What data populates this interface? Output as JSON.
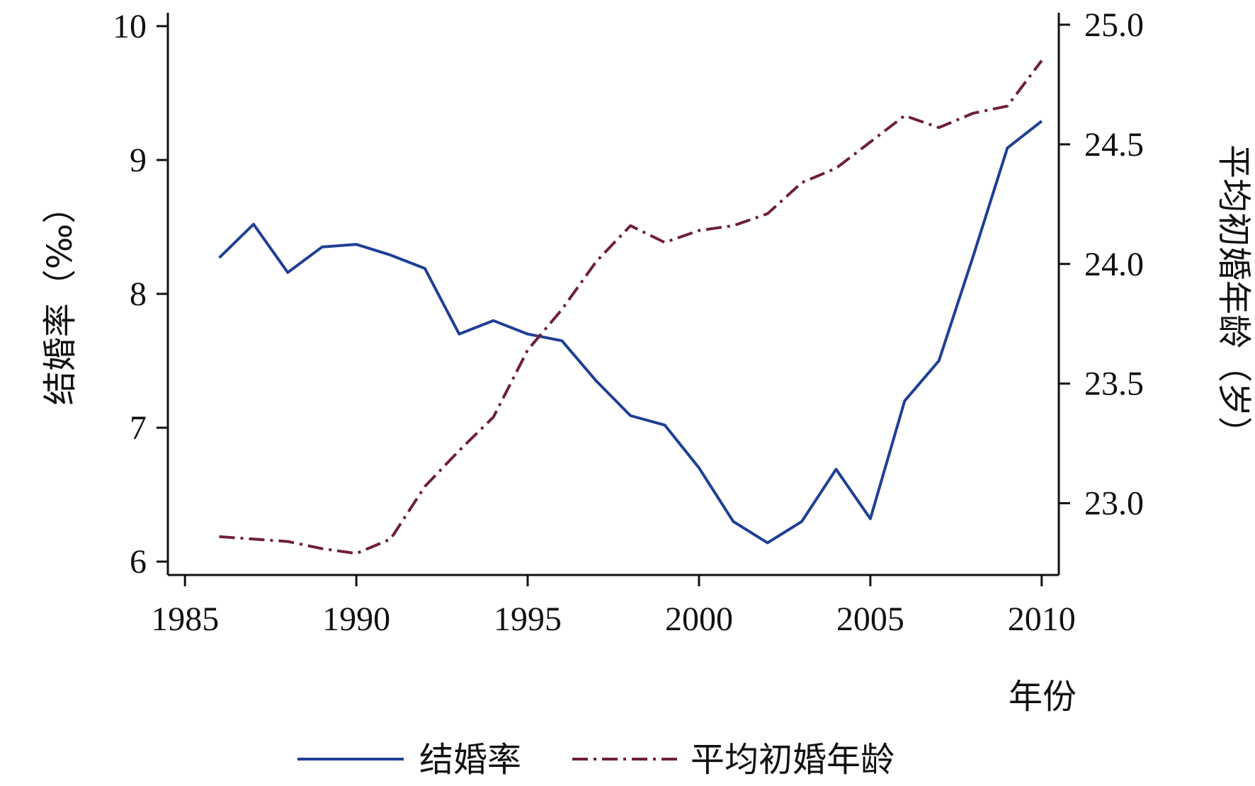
{
  "chart_data": {
    "type": "line",
    "title": "",
    "xlabel": "年份",
    "ylabel_left": "结婚率（‰）",
    "ylabel_right": "平均初婚年龄（岁）",
    "xlim": [
      1984.5,
      2010.5
    ],
    "xticks": [
      1985,
      1990,
      1995,
      2000,
      2005,
      2010
    ],
    "ylim_left": [
      5.9,
      10.1
    ],
    "yticks_left": [
      6,
      7,
      8,
      9,
      10
    ],
    "ylim_right": [
      22.7,
      25.05
    ],
    "yticks_right": [
      23.0,
      23.5,
      24.0,
      24.5,
      25.0
    ],
    "grid": false,
    "legend_position": "bottom",
    "series": [
      {
        "name": "结婚率",
        "axis": "left",
        "color": "#1f3f95",
        "dash": "solid",
        "x": [
          1986,
          1987,
          1988,
          1989,
          1990,
          1991,
          1992,
          1993,
          1994,
          1995,
          1996,
          1997,
          1998,
          1999,
          2000,
          2001,
          2002,
          2003,
          2004,
          2005,
          2006,
          2007,
          2008,
          2009,
          2010
        ],
        "values": [
          8.27,
          8.52,
          8.16,
          8.35,
          8.37,
          8.29,
          8.19,
          7.7,
          7.8,
          7.7,
          7.65,
          7.35,
          7.09,
          7.02,
          6.7,
          6.3,
          6.14,
          6.3,
          6.69,
          6.32,
          7.2,
          7.5,
          8.28,
          9.09,
          9.29
        ]
      },
      {
        "name": "平均初婚年龄",
        "axis": "right",
        "color": "#6e1f3a",
        "dash": "dashdot",
        "x": [
          1986,
          1987,
          1988,
          1989,
          1990,
          1991,
          1992,
          1993,
          1994,
          1995,
          1996,
          1997,
          1998,
          1999,
          2000,
          2001,
          2002,
          2003,
          2004,
          2005,
          2006,
          2007,
          2008,
          2009,
          2010
        ],
        "values": [
          22.86,
          22.85,
          22.84,
          22.81,
          22.79,
          22.85,
          23.07,
          23.22,
          23.36,
          23.64,
          23.81,
          24.01,
          24.16,
          24.09,
          24.14,
          24.16,
          24.21,
          24.34,
          24.4,
          24.51,
          24.62,
          24.57,
          24.63,
          24.66,
          24.85
        ]
      }
    ]
  }
}
